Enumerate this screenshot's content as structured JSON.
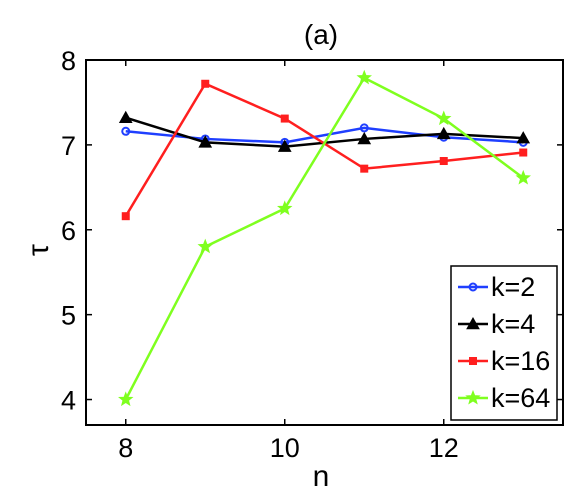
{
  "chart_data": {
    "type": "line",
    "title": "(a)",
    "xlabel": "n",
    "ylabel": "τ",
    "xlim": [
      7.5,
      13.5
    ],
    "ylim": [
      3.7,
      8
    ],
    "xticks": [
      8,
      10,
      12
    ],
    "yticks": [
      4,
      5,
      6,
      7,
      8
    ],
    "grid": false,
    "legend_position": "bottom-right",
    "x": [
      8,
      9,
      10,
      11,
      12,
      13
    ],
    "series": [
      {
        "name": "k=2",
        "color": "#1f3fff",
        "marker": "circle",
        "values": [
          7.16,
          7.07,
          7.03,
          7.2,
          7.09,
          7.03
        ]
      },
      {
        "name": "k=4",
        "color": "#000000",
        "marker": "triangle",
        "values": [
          7.32,
          7.03,
          6.98,
          7.07,
          7.13,
          7.08
        ]
      },
      {
        "name": "k=16",
        "color": "#ff1f1f",
        "marker": "square",
        "values": [
          6.16,
          7.72,
          7.31,
          6.72,
          6.81,
          6.91
        ]
      },
      {
        "name": "k=64",
        "color": "#7fff1f",
        "marker": "star",
        "values": [
          4.0,
          5.8,
          6.25,
          7.79,
          7.31,
          6.61
        ]
      }
    ]
  }
}
